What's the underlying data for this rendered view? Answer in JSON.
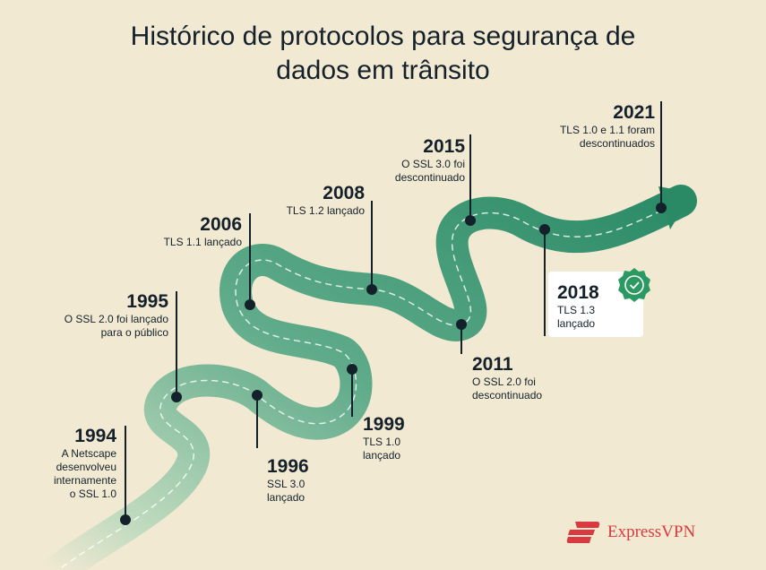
{
  "title_line1": "Histórico de protocolos para segurança de",
  "title_line2": "dados em trânsito",
  "events": [
    {
      "year": "1994",
      "text": [
        "A Netscape",
        "desenvolveu",
        "internamente",
        "o SSL 1.0"
      ]
    },
    {
      "year": "1995",
      "text": [
        "O SSL 2.0 foi lançado",
        "para o público"
      ]
    },
    {
      "year": "1996",
      "text": [
        "SSL 3.0",
        "lançado"
      ]
    },
    {
      "year": "1999",
      "text": [
        "TLS 1.0",
        "lançado"
      ]
    },
    {
      "year": "2006",
      "text": [
        "TLS 1.1 lançado"
      ]
    },
    {
      "year": "2008",
      "text": [
        "TLS 1.2 lançado"
      ]
    },
    {
      "year": "2011",
      "text": [
        "O SSL 2.0 foi",
        "descontinuado"
      ]
    },
    {
      "year": "2015",
      "text": [
        "O SSL 3.0 foi",
        "descontinuado"
      ]
    },
    {
      "year": "2018",
      "text": [
        "TLS 1.3",
        "lançado"
      ]
    },
    {
      "year": "2021",
      "text": [
        "TLS 1.0 e 1.1 foram",
        "descontinuados"
      ]
    }
  ],
  "highlight_icon": "verified-badge-icon",
  "brand": {
    "name": "ExpressVPN",
    "color": "#da3940"
  },
  "colors": {
    "road_start": "#c3dcc0",
    "road_end": "#2a8a66",
    "marker": "#14212b"
  }
}
